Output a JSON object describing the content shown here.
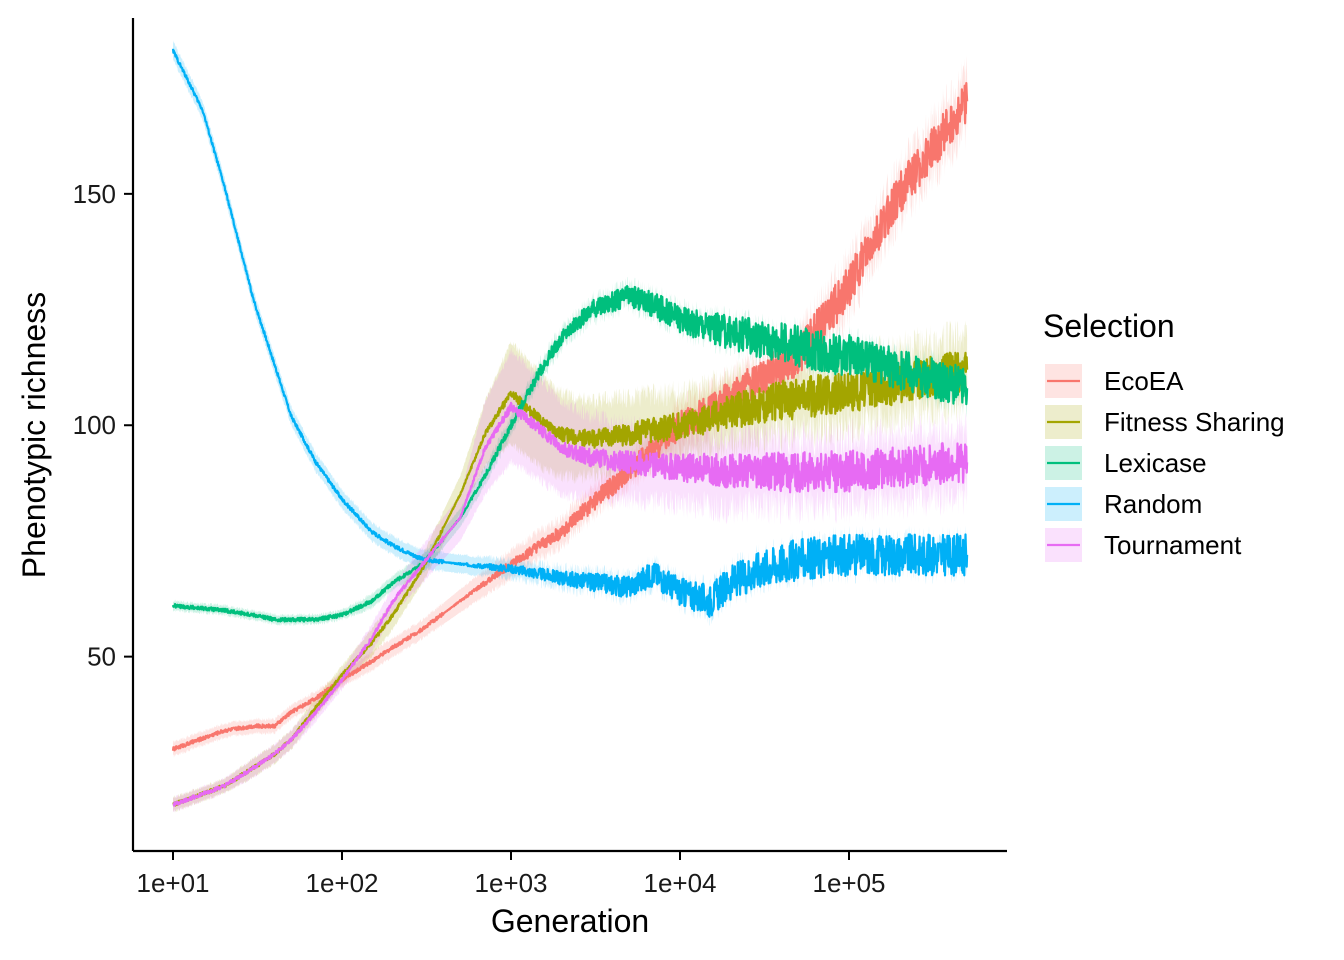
{
  "chart_data": {
    "type": "line",
    "title": "",
    "xlabel": "Generation",
    "ylabel": "Phenotypic richness",
    "x_scale": "log10",
    "xlim": [
      6,
      900000
    ],
    "ylim": [
      8,
      188
    ],
    "x_ticks": [
      {
        "value": 10,
        "label": "1e+01"
      },
      {
        "value": 100,
        "label": "1e+02"
      },
      {
        "value": 1000,
        "label": "1e+03"
      },
      {
        "value": 10000,
        "label": "1e+04"
      },
      {
        "value": 100000,
        "label": "1e+05"
      }
    ],
    "y_ticks": [
      {
        "value": 50,
        "label": "50"
      },
      {
        "value": 100,
        "label": "100"
      },
      {
        "value": 150,
        "label": "150"
      }
    ],
    "grid": false,
    "legend": {
      "title": "Selection",
      "position": "right"
    },
    "series": [
      {
        "name": "EcoEA",
        "color": "#F8766D",
        "x": [
          10,
          20,
          30,
          40,
          50,
          70,
          100,
          150,
          200,
          300,
          500,
          1000,
          2000,
          3000,
          5000,
          10000,
          20000,
          50000,
          100000,
          200000,
          500000
        ],
        "y": [
          30,
          34,
          35,
          35,
          38,
          41,
          45,
          49,
          52,
          56,
          62,
          70,
          77,
          83,
          90,
          100,
          106,
          115,
          130,
          150,
          170
        ],
        "band": [
          1.5,
          1.5,
          1.5,
          1.5,
          1.5,
          1.5,
          1.5,
          2,
          2,
          2,
          2.5,
          3,
          3,
          3,
          3,
          4,
          4,
          4,
          5,
          5,
          6
        ]
      },
      {
        "name": "Fitness Sharing",
        "color": "#A3A500",
        "x": [
          10,
          20,
          30,
          40,
          50,
          70,
          100,
          150,
          200,
          300,
          500,
          700,
          1000,
          1500,
          2000,
          3000,
          5000,
          10000,
          20000,
          50000,
          100000,
          200000,
          500000
        ],
        "y": [
          18,
          22,
          26,
          29,
          32,
          39,
          46,
          53,
          59,
          69,
          85,
          98,
          107,
          101,
          98,
          97,
          98,
          100,
          103,
          106,
          107,
          109,
          112
        ],
        "band": [
          1.5,
          1.5,
          2,
          2,
          2,
          2,
          2,
          3,
          3,
          3,
          4,
          7,
          11,
          10,
          9,
          8,
          8,
          7,
          7,
          7,
          7,
          7,
          7
        ]
      },
      {
        "name": "Lexicase",
        "color": "#00BF7D",
        "x": [
          10,
          20,
          30,
          40,
          50,
          70,
          100,
          150,
          200,
          300,
          500,
          700,
          1000,
          1500,
          2000,
          3000,
          5000,
          7000,
          10000,
          20000,
          50000,
          100000,
          200000,
          500000
        ],
        "y": [
          61,
          60,
          59,
          58,
          58,
          58,
          59,
          62,
          66,
          70,
          80,
          89,
          100,
          112,
          119,
          125,
          128,
          126,
          123,
          120,
          117,
          115,
          112,
          108
        ],
        "band": [
          1,
          1,
          1,
          1,
          1,
          1,
          1,
          1.5,
          1.5,
          2,
          2,
          2,
          2,
          2,
          2,
          2,
          2,
          2,
          2,
          2,
          2,
          2,
          2,
          3
        ]
      },
      {
        "name": "Random",
        "color": "#00B0F6",
        "x": [
          10,
          15,
          20,
          30,
          40,
          50,
          70,
          100,
          150,
          200,
          300,
          500,
          1000,
          2000,
          5000,
          7000,
          10000,
          15000,
          20000,
          30000,
          50000,
          100000,
          200000,
          500000
        ],
        "y": [
          181,
          168,
          152,
          127,
          113,
          102,
          92,
          84,
          77,
          74,
          71,
          70,
          69,
          67,
          65,
          68,
          64,
          62,
          66,
          69,
          71,
          72,
          72,
          72
        ],
        "band": [
          2,
          2,
          2,
          2,
          2,
          2,
          2,
          2,
          2,
          2,
          2,
          2,
          2,
          2,
          2,
          2,
          2,
          2,
          2,
          2,
          2,
          2,
          2,
          2
        ]
      },
      {
        "name": "Tournament",
        "color": "#E76BF3",
        "x": [
          10,
          20,
          30,
          40,
          50,
          70,
          100,
          150,
          200,
          300,
          500,
          700,
          1000,
          1500,
          2000,
          3000,
          5000,
          10000,
          20000,
          50000,
          100000,
          200000,
          500000
        ],
        "y": [
          18,
          22,
          26,
          29,
          32,
          38,
          45,
          54,
          62,
          70,
          80,
          95,
          104,
          99,
          95,
          93,
          92,
          91,
          90,
          90,
          90,
          91,
          92
        ],
        "band": [
          1.5,
          1.5,
          2,
          2,
          2,
          2,
          2,
          3,
          3,
          4,
          5,
          10,
          12,
          11,
          10,
          9,
          8,
          8,
          8,
          7,
          7,
          7,
          7
        ]
      }
    ]
  }
}
